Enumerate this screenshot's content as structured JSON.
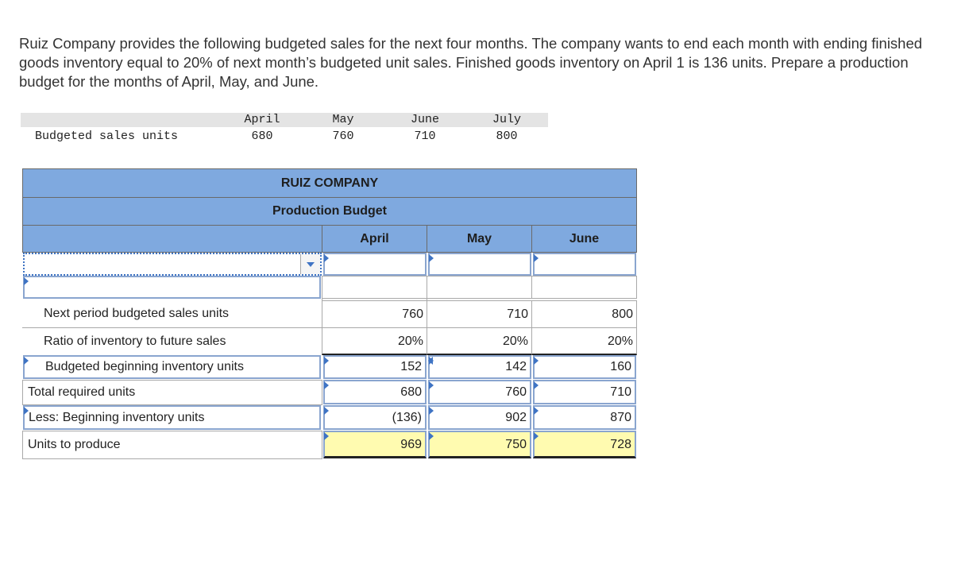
{
  "intro": "Ruiz Company provides the following budgeted sales for the next four months. The company wants to end each month with ending finished goods inventory equal to 20% of next month’s budgeted unit sales. Finished goods inventory on April 1 is 136 units. Prepare a production budget for the months of April, May, and June.",
  "sales": {
    "label": "Budgeted sales units",
    "months": [
      "April",
      "May",
      "June",
      "July"
    ],
    "values": [
      "680",
      "760",
      "710",
      "800"
    ]
  },
  "budget": {
    "company": "RUIZ COMPANY",
    "title": "Production Budget",
    "columns": [
      "April",
      "May",
      "June"
    ],
    "dropdown_value": "",
    "rows": [
      {
        "label": "Next period budgeted sales units",
        "values": [
          "760",
          "710",
          "800"
        ]
      },
      {
        "label": "Ratio of inventory to future sales",
        "values": [
          "20%",
          "20%",
          "20%"
        ]
      },
      {
        "label": "Budgeted beginning inventory units",
        "values": [
          "152",
          "142",
          "160"
        ]
      },
      {
        "label": "Total required units",
        "values": [
          "680",
          "760",
          "710"
        ]
      },
      {
        "label": "Less: Beginning inventory units",
        "values": [
          "(136)",
          "902",
          "870"
        ]
      },
      {
        "label": "Units to produce",
        "values": [
          "969",
          "750",
          "728"
        ]
      }
    ]
  },
  "colors": {
    "header_blue": "#7fa9df",
    "highlight_yellow": "#fffbb0",
    "input_border": "#8aa5cf"
  }
}
